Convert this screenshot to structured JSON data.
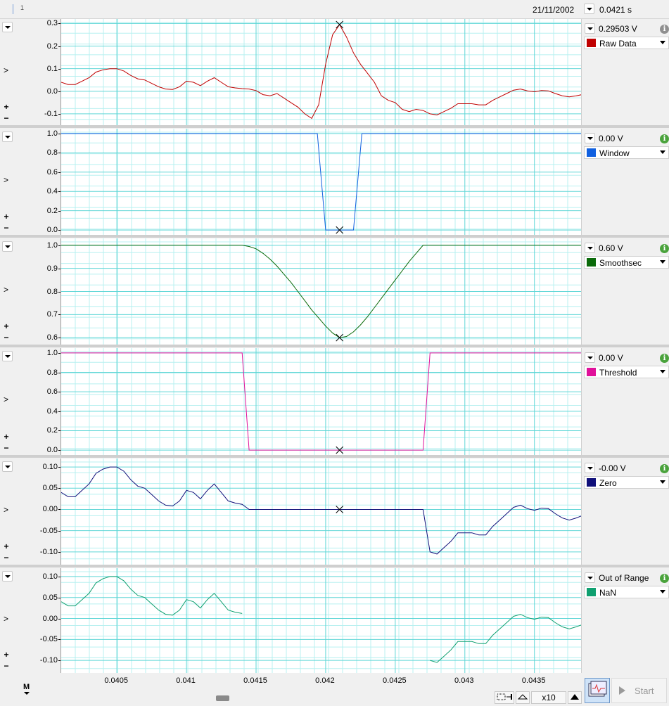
{
  "header": {
    "channel_number": "1",
    "date": "21/11/2002",
    "time": "0.0421 s"
  },
  "panels": [
    {
      "id": "raw",
      "value": "0.29503 V",
      "name": "Raw Data",
      "color": "#c00000",
      "info": "gray",
      "yticks": [
        "0.3",
        "0.2",
        "0.1",
        "0.0",
        "-0.1"
      ]
    },
    {
      "id": "window",
      "value": "0.00 V",
      "name": "Window",
      "color": "#1060e0",
      "info": "green",
      "yticks": [
        "1.0",
        "0.8",
        "0.6",
        "0.4",
        "0.2",
        "0.0"
      ]
    },
    {
      "id": "smooth",
      "value": "0.60 V",
      "name": "Smoothsec",
      "color": "#0a6a0a",
      "info": "green",
      "yticks": [
        "1.0",
        "0.9",
        "0.8",
        "0.7",
        "0.6"
      ]
    },
    {
      "id": "threshold",
      "value": "0.00 V",
      "name": "Threshold",
      "color": "#e0109a",
      "info": "green",
      "yticks": [
        "1.0",
        "0.8",
        "0.6",
        "0.4",
        "0.2",
        "0.0"
      ]
    },
    {
      "id": "zero",
      "value": "-0.00 V",
      "name": "Zero",
      "color": "#10107a",
      "info": "green",
      "yticks": [
        "0.10",
        "0.05",
        "0.00",
        "-0.05",
        "-0.10"
      ]
    },
    {
      "id": "oor",
      "value": "Out of Range",
      "name": "NaN",
      "color": "#10a070",
      "info": "green",
      "yticks": [
        "0.10",
        "0.05",
        "0.00",
        "-0.05",
        "-0.10"
      ]
    }
  ],
  "x_axis": {
    "ticks": [
      "0.0405",
      "0.041",
      "0.0415",
      "0.042",
      "0.0425",
      "0.043",
      "0.0435"
    ]
  },
  "controls": {
    "left_arrow": ">",
    "plus": "+",
    "minus": "−",
    "marker_button": "M",
    "zoom_factor": "x10",
    "start_label": "Start"
  },
  "chart_data": {
    "type": "line",
    "x_unit": "s",
    "cursor_x": 0.0421,
    "series": [
      {
        "name": "Raw Data",
        "ylim": [
          -0.15,
          0.32
        ],
        "x": [
          0.0401,
          0.04015,
          0.0402,
          0.04025,
          0.0403,
          0.04035,
          0.0404,
          0.04045,
          0.0405,
          0.04055,
          0.0406,
          0.04065,
          0.0407,
          0.04075,
          0.0408,
          0.04085,
          0.0409,
          0.04095,
          0.041,
          0.04105,
          0.0411,
          0.04115,
          0.0412,
          0.04125,
          0.0413,
          0.04135,
          0.0414,
          0.04145,
          0.0415,
          0.04155,
          0.0416,
          0.04165,
          0.0417,
          0.04175,
          0.0418,
          0.04185,
          0.0419,
          0.04195,
          0.042,
          0.04205,
          0.0421,
          0.04215,
          0.0422,
          0.04225,
          0.0423,
          0.04235,
          0.0424,
          0.04245,
          0.0425,
          0.04255,
          0.0426,
          0.04265,
          0.0427,
          0.04275,
          0.0428,
          0.04285,
          0.0429,
          0.04295,
          0.043,
          0.04305,
          0.0431,
          0.04315,
          0.0432,
          0.04325,
          0.0433,
          0.04335,
          0.0434,
          0.04345,
          0.0435,
          0.04355,
          0.0436,
          0.04365,
          0.0437,
          0.04375,
          0.0438,
          0.04384
        ],
        "y": [
          0.04,
          0.03,
          0.03,
          0.045,
          0.06,
          0.085,
          0.095,
          0.1,
          0.1,
          0.09,
          0.07,
          0.055,
          0.05,
          0.035,
          0.02,
          0.01,
          0.008,
          0.02,
          0.045,
          0.04,
          0.025,
          0.045,
          0.06,
          0.04,
          0.02,
          0.015,
          0.012,
          0.01,
          0.003,
          -0.015,
          -0.02,
          -0.01,
          -0.03,
          -0.05,
          -0.07,
          -0.1,
          -0.12,
          -0.06,
          0.12,
          0.25,
          0.295,
          0.24,
          0.17,
          0.12,
          0.08,
          0.04,
          -0.02,
          -0.04,
          -0.05,
          -0.08,
          -0.09,
          -0.08,
          -0.085,
          -0.1,
          -0.105,
          -0.09,
          -0.075,
          -0.055,
          -0.055,
          -0.055,
          -0.06,
          -0.06,
          -0.04,
          -0.025,
          -0.01,
          0.005,
          0.01,
          0.002,
          -0.002,
          0.003,
          0.002,
          -0.01,
          -0.02,
          -0.025,
          -0.02,
          -0.015
        ]
      },
      {
        "name": "Window",
        "ylim": [
          -0.05,
          1.05
        ],
        "x": [
          0.0401,
          0.04194,
          0.042,
          0.0422,
          0.04226,
          0.04384
        ],
        "y": [
          1.0,
          1.0,
          0.0,
          0.0,
          1.0,
          1.0
        ]
      },
      {
        "name": "Smoothsec",
        "ylim": [
          0.57,
          1.03
        ],
        "x": [
          0.0401,
          0.0414,
          0.04145,
          0.0415,
          0.04155,
          0.0416,
          0.04165,
          0.0417,
          0.04175,
          0.0418,
          0.04185,
          0.0419,
          0.04195,
          0.042,
          0.04205,
          0.0421,
          0.04215,
          0.0422,
          0.04225,
          0.0423,
          0.04235,
          0.0424,
          0.04245,
          0.0425,
          0.04255,
          0.0426,
          0.04265,
          0.0427,
          0.04384
        ],
        "y": [
          1.0,
          1.0,
          0.995,
          0.985,
          0.965,
          0.94,
          0.91,
          0.875,
          0.84,
          0.8,
          0.76,
          0.72,
          0.685,
          0.65,
          0.62,
          0.6,
          0.605,
          0.625,
          0.655,
          0.69,
          0.73,
          0.77,
          0.81,
          0.85,
          0.89,
          0.93,
          0.965,
          1.0,
          1.0
        ]
      },
      {
        "name": "Threshold",
        "ylim": [
          -0.05,
          1.05
        ],
        "x": [
          0.0401,
          0.0414,
          0.04145,
          0.0427,
          0.04275,
          0.04384
        ],
        "y": [
          1.0,
          1.0,
          0.0,
          0.0,
          1.0,
          1.0
        ]
      },
      {
        "name": "Zero",
        "ylim": [
          -0.13,
          0.12
        ],
        "x": [
          0.0401,
          0.04015,
          0.0402,
          0.04025,
          0.0403,
          0.04035,
          0.0404,
          0.04045,
          0.0405,
          0.04055,
          0.0406,
          0.04065,
          0.0407,
          0.04075,
          0.0408,
          0.04085,
          0.0409,
          0.04095,
          0.041,
          0.04105,
          0.0411,
          0.04115,
          0.0412,
          0.04125,
          0.0413,
          0.04135,
          0.0414,
          0.04145,
          0.0427,
          0.04275,
          0.0428,
          0.04285,
          0.0429,
          0.04295,
          0.043,
          0.04305,
          0.0431,
          0.04315,
          0.0432,
          0.04325,
          0.0433,
          0.04335,
          0.0434,
          0.04345,
          0.0435,
          0.04355,
          0.0436,
          0.04365,
          0.0437,
          0.04375,
          0.0438,
          0.04384
        ],
        "y": [
          0.04,
          0.03,
          0.03,
          0.045,
          0.06,
          0.085,
          0.095,
          0.1,
          0.1,
          0.09,
          0.07,
          0.055,
          0.05,
          0.035,
          0.02,
          0.01,
          0.008,
          0.02,
          0.045,
          0.04,
          0.025,
          0.045,
          0.06,
          0.04,
          0.02,
          0.015,
          0.012,
          0.0,
          0.0,
          -0.1,
          -0.105,
          -0.09,
          -0.075,
          -0.055,
          -0.055,
          -0.055,
          -0.06,
          -0.06,
          -0.04,
          -0.025,
          -0.01,
          0.005,
          0.01,
          0.002,
          -0.002,
          0.003,
          0.002,
          -0.01,
          -0.02,
          -0.025,
          -0.02,
          -0.015
        ]
      },
      {
        "name": "NaN",
        "ylim": [
          -0.13,
          0.12
        ],
        "x": [
          0.0401,
          0.04015,
          0.0402,
          0.04025,
          0.0403,
          0.04035,
          0.0404,
          0.04045,
          0.0405,
          0.04055,
          0.0406,
          0.04065,
          0.0407,
          0.04075,
          0.0408,
          0.04085,
          0.0409,
          0.04095,
          0.041,
          0.04105,
          0.0411,
          0.04115,
          0.0412,
          0.04125,
          0.0413,
          0.04135,
          0.0414,
          null,
          0.04275,
          0.0428,
          0.04285,
          0.0429,
          0.04295,
          0.043,
          0.04305,
          0.0431,
          0.04315,
          0.0432,
          0.04325,
          0.0433,
          0.04335,
          0.0434,
          0.04345,
          0.0435,
          0.04355,
          0.0436,
          0.04365,
          0.0437,
          0.04375,
          0.0438,
          0.04384
        ],
        "y": [
          0.04,
          0.03,
          0.03,
          0.045,
          0.06,
          0.085,
          0.095,
          0.1,
          0.1,
          0.09,
          0.07,
          0.055,
          0.05,
          0.035,
          0.02,
          0.01,
          0.008,
          0.02,
          0.045,
          0.04,
          0.025,
          0.045,
          0.06,
          0.04,
          0.02,
          0.015,
          0.012,
          null,
          -0.1,
          -0.105,
          -0.09,
          -0.075,
          -0.055,
          -0.055,
          -0.055,
          -0.06,
          -0.06,
          -0.04,
          -0.025,
          -0.01,
          0.005,
          0.01,
          0.002,
          -0.002,
          0.003,
          0.002,
          -0.01,
          -0.02,
          -0.025,
          -0.02,
          -0.015
        ]
      }
    ]
  }
}
